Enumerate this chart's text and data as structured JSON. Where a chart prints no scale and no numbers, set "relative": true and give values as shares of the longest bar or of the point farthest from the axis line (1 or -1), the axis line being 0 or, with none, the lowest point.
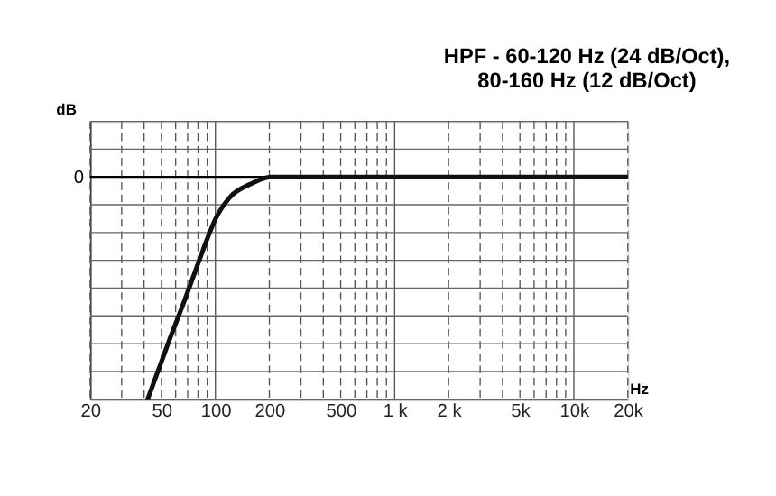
{
  "chart_data": {
    "type": "line",
    "title": "HPF - 60-120 Hz (24 dB/Oct),\n80-160 Hz (12 dB/Oct)",
    "ylabel": "dB",
    "xlabel": "Hz",
    "relative": true,
    "log": "x",
    "x": [
      41.9,
      55,
      67,
      80,
      93,
      100,
      121,
      157,
      204,
      500,
      1000,
      5000,
      20000
    ],
    "series": [
      {
        "color": "#111111",
        "values": [
          -1,
          -0.74,
          -0.56,
          -0.39,
          -0.25,
          -0.19,
          -0.09,
          -0.032,
          0,
          0,
          0,
          0,
          0
        ]
      }
    ],
    "xlim": [
      20,
      20000
    ],
    "xticks": [
      20,
      {
        "value": 30,
        "label": null
      },
      {
        "value": 40,
        "label": null
      },
      50,
      {
        "value": 60,
        "label": null
      },
      {
        "value": 70,
        "label": null
      },
      {
        "value": 80,
        "label": null
      },
      {
        "value": 90,
        "label": null
      },
      100,
      200,
      {
        "value": 300,
        "label": null
      },
      {
        "value": 400,
        "label": null
      },
      500,
      {
        "value": 600,
        "label": null
      },
      {
        "value": 700,
        "label": null
      },
      {
        "value": 800,
        "label": null
      },
      {
        "value": 900,
        "label": null
      },
      {
        "value": 1000,
        "label": "1 k"
      },
      {
        "value": 2000,
        "label": "2 k"
      },
      {
        "value": 3000,
        "label": null
      },
      {
        "value": 4000,
        "label": null
      },
      {
        "value": 5000,
        "label": "5k"
      },
      {
        "value": 6000,
        "label": null
      },
      {
        "value": 7000,
        "label": null
      },
      {
        "value": 8000,
        "label": null
      },
      {
        "value": 9000,
        "label": null
      },
      {
        "value": 10000,
        "label": "10k"
      },
      {
        "value": 20000,
        "label": "20k"
      }
    ],
    "ref_lines": [
      {
        "axis": "y",
        "value": 0,
        "label": "0",
        "color": "#000000"
      }
    ],
    "grid": true,
    "line_style": "solid",
    "marker": "none"
  }
}
